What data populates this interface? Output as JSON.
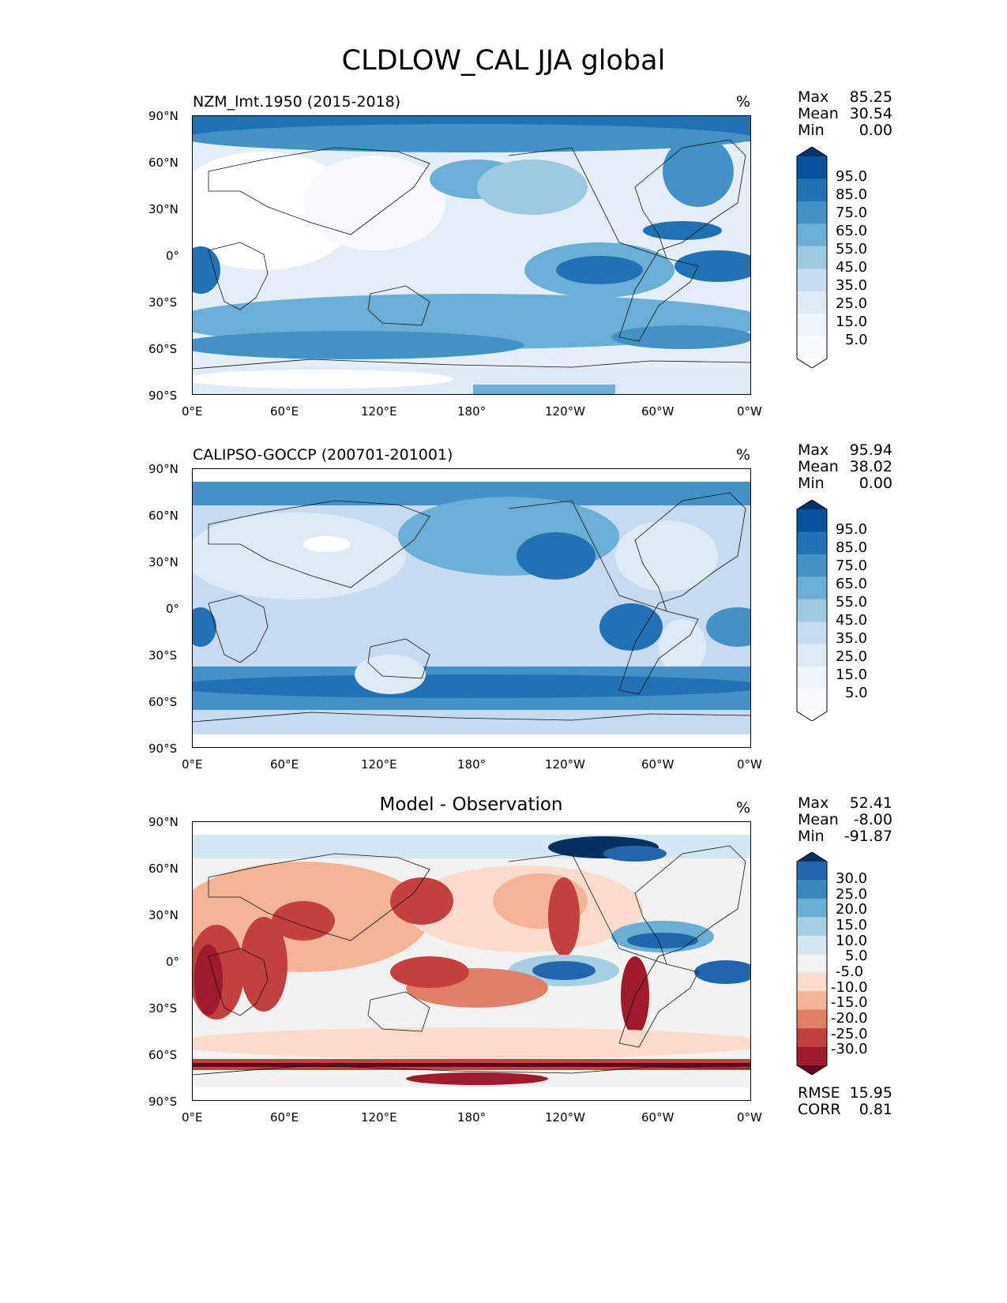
{
  "title": "CLDLOW_CAL JJA global",
  "unit": "%",
  "x_ticks": [
    "0°E",
    "60°E",
    "120°E",
    "180°",
    "120°W",
    "60°W",
    "0°W"
  ],
  "y_ticks": [
    "90°N",
    "60°N",
    "30°N",
    "0°",
    "30°S",
    "60°S",
    "90°S"
  ],
  "stat_labels": {
    "max": "Max",
    "mean": "Mean",
    "min": "Min",
    "rmse": "RMSE",
    "corr": "CORR"
  },
  "panels": [
    {
      "title": "NZM_lmt.1950 (2015-2018)",
      "max": "85.25",
      "mean": "30.54",
      "min": "0.00",
      "colorbar": {
        "levels": [
          "95.0",
          "85.0",
          "75.0",
          "65.0",
          "55.0",
          "45.0",
          "35.0",
          "25.0",
          "15.0",
          "5.0"
        ],
        "colors": [
          "#08306b",
          "#08519c",
          "#2171b5",
          "#4292c6",
          "#6baed6",
          "#9ecae1",
          "#c6dbef",
          "#deebf7",
          "#eef5fc",
          "#f7fbff",
          "#ffffff"
        ]
      }
    },
    {
      "title": "CALIPSO-GOCCP (200701-201001)",
      "max": "95.94",
      "mean": "38.02",
      "min": "0.00",
      "colorbar": {
        "levels": [
          "95.0",
          "85.0",
          "75.0",
          "65.0",
          "55.0",
          "45.0",
          "35.0",
          "25.0",
          "15.0",
          "5.0"
        ],
        "colors": [
          "#08306b",
          "#08519c",
          "#2171b5",
          "#4292c6",
          "#6baed6",
          "#9ecae1",
          "#c6dbef",
          "#deebf7",
          "#eef5fc",
          "#f7fbff",
          "#ffffff"
        ]
      }
    },
    {
      "title": "Model - Observation",
      "max": "52.41",
      "mean": "-8.00",
      "min": "-91.87",
      "rmse": "15.95",
      "corr": "0.81",
      "colorbar": {
        "levels": [
          "30.0",
          "25.0",
          "20.0",
          "15.0",
          "10.0",
          "5.0",
          "-5.0",
          "-10.0",
          "-15.0",
          "-20.0",
          "-25.0",
          "-30.0"
        ],
        "colors": [
          "#053061",
          "#2166ac",
          "#3a87c0",
          "#6aaed3",
          "#a6cfe4",
          "#d4e6f1",
          "#f2f2f2",
          "#fbdccc",
          "#f5b497",
          "#e07f66",
          "#c4403f",
          "#9e1a2c",
          "#67001f"
        ]
      }
    }
  ]
}
